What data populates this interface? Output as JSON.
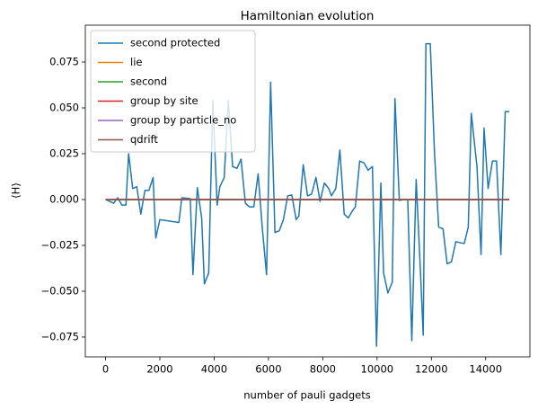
{
  "chart_data": {
    "type": "line",
    "title": "Hamiltonian evolution",
    "xlabel": "number of pauli gadgets",
    "ylabel": "⟨H⟩",
    "xlim": [
      -745,
      15630
    ],
    "ylim": [
      -0.0858,
      0.0951
    ],
    "xticks": [
      0,
      2000,
      4000,
      6000,
      8000,
      10000,
      12000,
      14000
    ],
    "yticks": [
      {
        "value": -0.075,
        "label": "−0.075"
      },
      {
        "value": -0.05,
        "label": "−0.050"
      },
      {
        "value": -0.025,
        "label": "−0.025"
      },
      {
        "value": 0,
        "label": "0.000"
      },
      {
        "value": 0.025,
        "label": "0.025"
      },
      {
        "value": 0.05,
        "label": "0.050"
      },
      {
        "value": 0.075,
        "label": "0.075"
      }
    ],
    "legend": "upper left",
    "series": [
      {
        "name": "second protected",
        "color": "#1f77b4",
        "x": [
          0,
          300,
          450,
          600,
          750,
          850,
          1000,
          1150,
          1300,
          1450,
          1600,
          1750,
          1850,
          2000,
          2700,
          2810,
          3120,
          3220,
          3380,
          3540,
          3640,
          3800,
          3950,
          4110,
          4210,
          4370,
          4520,
          4680,
          4840,
          4990,
          5150,
          5300,
          5460,
          5620,
          5770,
          5930,
          6080,
          6240,
          6400,
          6550,
          6710,
          6860,
          7020,
          7120,
          7280,
          7440,
          7590,
          7750,
          7900,
          8060,
          8220,
          8320,
          8480,
          8630,
          8790,
          8940,
          9100,
          9200,
          9360,
          9520,
          9670,
          9830,
          9980,
          10140,
          10240,
          10400,
          10560,
          10660,
          10820,
          10970,
          11130,
          11280,
          11440,
          11600,
          11700,
          11800,
          11960,
          12120,
          12270,
          12430,
          12580,
          12740,
          12900,
          13050,
          13210,
          13360,
          13470,
          13680,
          13830,
          13940,
          14090,
          14250,
          14400,
          14560,
          14720,
          14870
        ],
        "values": [
          0,
          -0.002,
          0.001,
          -0.003,
          -0.003,
          0.025,
          0.006,
          0.007,
          -0.008,
          0.005,
          0.005,
          0.012,
          -0.021,
          -0.011,
          -0.0125,
          0.001,
          0.0005,
          -0.041,
          0.0065,
          -0.01,
          -0.046,
          -0.04,
          0.054,
          -0.003,
          0.007,
          0.012,
          0.054,
          0.018,
          0.017,
          0.022,
          -0.002,
          -0.004,
          -0.004,
          0.014,
          -0.015,
          -0.041,
          0.064,
          -0.018,
          -0.017,
          -0.011,
          0.002,
          0.0025,
          -0.011,
          -0.009,
          0.019,
          0.002,
          0.003,
          0.012,
          -0.001,
          0.009,
          0.006,
          0.002,
          0.006,
          0.027,
          -0.008,
          -0.01,
          -0.006,
          -0.004,
          0.021,
          0.02,
          0.016,
          0.018,
          -0.08,
          0.009,
          -0.04,
          -0.051,
          -0.045,
          0.055,
          -0.0005,
          0,
          0,
          -0.077,
          0.011,
          -0.04,
          -0.074,
          0.085,
          0.085,
          0.024,
          -0.015,
          -0.016,
          -0.035,
          -0.034,
          -0.023,
          -0.0235,
          -0.024,
          -0.015,
          0.047,
          0.018,
          -0.03,
          0.039,
          0.006,
          0.021,
          0.021,
          -0.03,
          0.048,
          0.048
        ]
      },
      {
        "name": "lie",
        "color": "#ff7f0e",
        "x": [
          0,
          14870
        ],
        "values": [
          0,
          0
        ]
      },
      {
        "name": "second",
        "color": "#2ca02c",
        "x": [
          0,
          14870
        ],
        "values": [
          0,
          0
        ]
      },
      {
        "name": "group by site",
        "color": "#d62728",
        "x": [
          0,
          14870
        ],
        "values": [
          0,
          0
        ]
      },
      {
        "name": "group by particle_no",
        "color": "#9467bd",
        "x": [
          0,
          14870
        ],
        "values": [
          0,
          0
        ]
      },
      {
        "name": "qdrift",
        "color": "#8c564b",
        "x": [
          0,
          14870
        ],
        "values": [
          0,
          0
        ]
      }
    ]
  }
}
